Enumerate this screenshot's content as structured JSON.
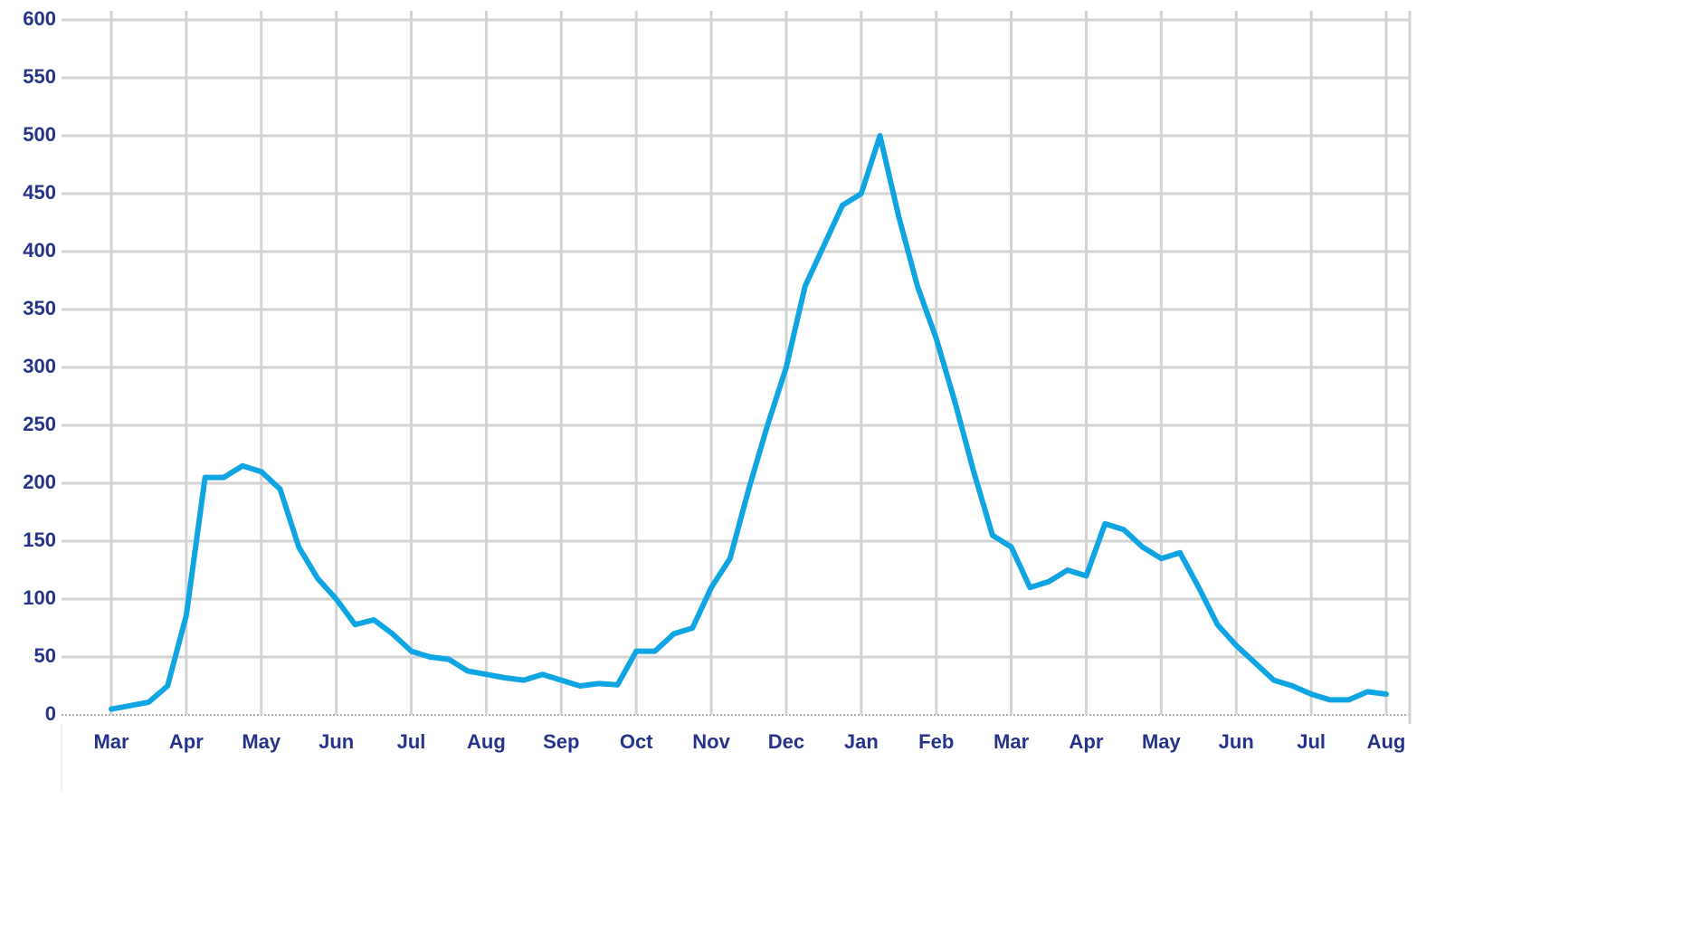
{
  "chart_data": {
    "type": "line",
    "categories": [
      "Mar",
      null,
      null,
      null,
      "Apr",
      null,
      null,
      null,
      "May",
      null,
      null,
      null,
      "Jun",
      null,
      null,
      null,
      "Jul",
      null,
      null,
      null,
      "Aug",
      null,
      null,
      null,
      "Sep",
      null,
      null,
      null,
      "Oct",
      null,
      null,
      null,
      "Nov",
      null,
      null,
      null,
      "Dec",
      null,
      null,
      null,
      "Jan",
      null,
      null,
      null,
      "Feb",
      null,
      null,
      null,
      "Mar",
      null,
      null,
      null,
      "Apr",
      null,
      null,
      null,
      "May",
      null,
      null,
      null,
      "Jun",
      null,
      null,
      null,
      "Jul",
      null,
      null,
      null,
      "Aug"
    ],
    "series": [
      {
        "color": "#0ea5e2",
        "values": [
          5,
          8,
          11,
          25,
          86,
          205,
          205,
          215,
          210,
          195,
          145,
          118,
          100,
          78,
          82,
          70,
          55,
          50,
          48,
          38,
          35,
          32,
          30,
          35,
          30,
          25,
          27,
          26,
          55,
          55,
          70,
          75,
          110,
          135,
          195,
          250,
          300,
          370,
          405,
          440,
          450,
          500,
          430,
          370,
          325,
          270,
          210,
          155,
          145,
          110,
          115,
          125,
          120,
          165,
          160,
          145,
          135,
          140,
          110,
          78,
          60,
          45,
          30,
          25,
          18,
          13,
          13,
          20,
          18
        ]
      }
    ],
    "ylim": [
      0,
      600
    ],
    "yticks": [
      0,
      50,
      100,
      150,
      200,
      250,
      300,
      350,
      400,
      450,
      500,
      550,
      600
    ],
    "grid": true
  }
}
